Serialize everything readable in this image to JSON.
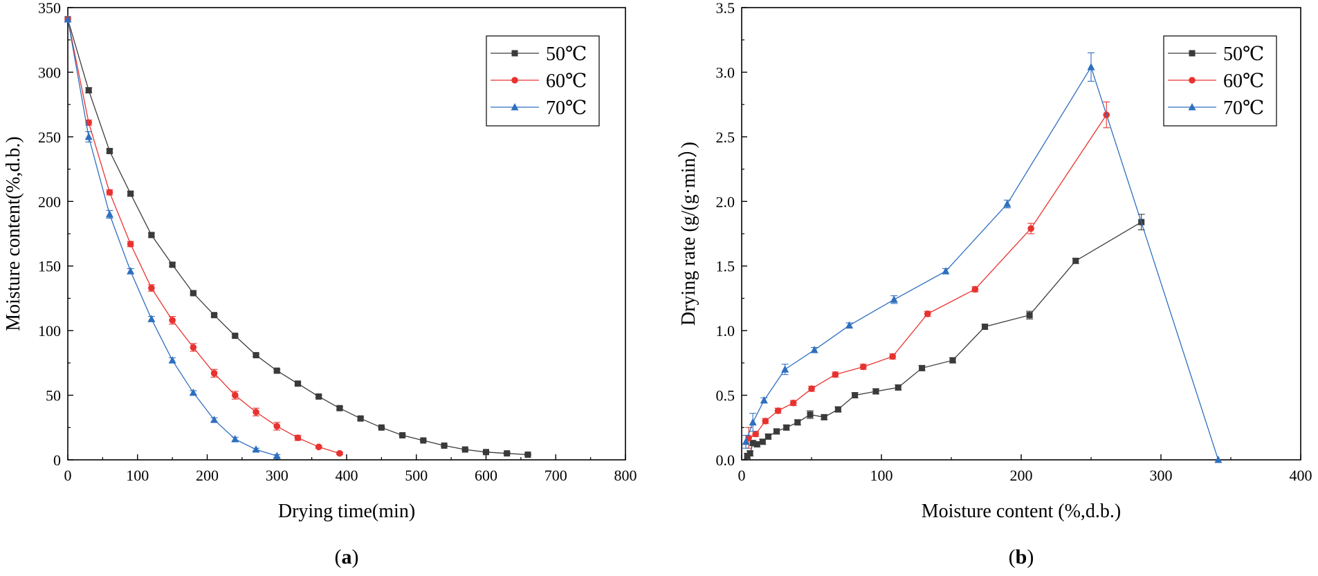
{
  "chart_data": [
    {
      "type": "line",
      "panel_label": "a",
      "xlabel": "Drying time(min)",
      "ylabel": "Moisture content(%,d.b.)",
      "xlim": [
        0,
        800
      ],
      "ylim": [
        0,
        350
      ],
      "xticks": [
        0,
        100,
        200,
        300,
        400,
        500,
        600,
        700,
        800
      ],
      "yticks": [
        0,
        50,
        100,
        150,
        200,
        250,
        300,
        350
      ],
      "grid": false,
      "legend_position": "top-right",
      "series": [
        {
          "name": "50℃",
          "color": "#3a3a3a",
          "marker": "square",
          "x": [
            0,
            30,
            60,
            90,
            120,
            150,
            180,
            210,
            240,
            270,
            300,
            330,
            360,
            390,
            420,
            450,
            480,
            510,
            540,
            570,
            600,
            630,
            660
          ],
          "y": [
            341,
            286,
            239,
            206,
            174,
            151,
            129,
            112,
            96,
            81,
            69,
            59,
            49,
            40,
            32,
            25,
            19,
            15,
            11,
            8,
            6,
            5,
            4
          ],
          "err": [
            0,
            2,
            1.5,
            1.5,
            1.5,
            1.5,
            1,
            1,
            1,
            1,
            1,
            1,
            1,
            1,
            1,
            0.5,
            0.5,
            0.5,
            0.5,
            0.5,
            0.5,
            0.5,
            0.5
          ]
        },
        {
          "name": "60℃",
          "color": "#e8322f",
          "marker": "circle",
          "x": [
            0,
            30,
            60,
            90,
            120,
            150,
            180,
            210,
            240,
            270,
            300,
            330,
            360,
            390
          ],
          "y": [
            341,
            261,
            207,
            167,
            133,
            108,
            87,
            67,
            50,
            37,
            26,
            17,
            10,
            5
          ],
          "err": [
            0,
            2,
            2,
            2,
            2.5,
            3,
            3,
            3,
            3,
            3,
            3,
            2,
            1,
            1
          ]
        },
        {
          "name": "70℃",
          "color": "#2e6fbf",
          "marker": "triangle",
          "x": [
            0,
            30,
            60,
            90,
            120,
            150,
            180,
            210,
            240,
            270,
            300
          ],
          "y": [
            341,
            250,
            190,
            146,
            109,
            77,
            52,
            31,
            16,
            8,
            3
          ],
          "err": [
            0,
            4,
            3,
            2,
            2,
            2,
            1.5,
            1.5,
            1.5,
            1,
            1
          ]
        }
      ]
    },
    {
      "type": "line",
      "panel_label": "b",
      "xlabel": "Moisture content (%,d.b.)",
      "ylabel": "Drying rate (g/(g·min）)",
      "xlim": [
        0,
        400
      ],
      "ylim": [
        0,
        3.5
      ],
      "xticks": [
        0,
        100,
        200,
        300,
        400
      ],
      "yticks": [
        0.0,
        0.5,
        1.0,
        1.5,
        2.0,
        2.5,
        3.0,
        3.5
      ],
      "grid": false,
      "legend_position": "top-right",
      "series": [
        {
          "name": "50℃",
          "color": "#3a3a3a",
          "marker": "square",
          "x": [
            4,
            6,
            8,
            11,
            15,
            19,
            25,
            32,
            40,
            49,
            59,
            69,
            81,
            96,
            112,
            129,
            151,
            174,
            206,
            239,
            286
          ],
          "y": [
            0.03,
            0.05,
            0.13,
            0.12,
            0.14,
            0.18,
            0.22,
            0.25,
            0.29,
            0.35,
            0.33,
            0.39,
            0.5,
            0.53,
            0.56,
            0.71,
            0.77,
            1.03,
            1.12,
            1.54,
            1.84
          ],
          "err": [
            0.02,
            0.02,
            0.02,
            0.02,
            0.02,
            0.02,
            0.02,
            0.02,
            0.02,
            0.03,
            0.02,
            0.02,
            0.02,
            0.02,
            0.02,
            0.02,
            0.02,
            0.02,
            0.03,
            0.02,
            0.06
          ]
        },
        {
          "name": "60℃",
          "color": "#e8322f",
          "marker": "circle",
          "x": [
            5,
            10,
            17,
            26,
            37,
            50,
            67,
            87,
            108,
            133,
            167,
            207,
            261
          ],
          "y": [
            0.17,
            0.2,
            0.3,
            0.38,
            0.44,
            0.55,
            0.66,
            0.72,
            0.8,
            1.13,
            1.32,
            1.79,
            2.67
          ],
          "err": [
            0.08,
            0.02,
            0.02,
            0.02,
            0.02,
            0.02,
            0.02,
            0.02,
            0.02,
            0.02,
            0.02,
            0.04,
            0.1
          ]
        },
        {
          "name": "70℃",
          "color": "#2e6fbf",
          "marker": "triangle",
          "x": [
            3,
            8,
            16,
            31,
            52,
            77,
            109,
            146,
            190,
            250,
            341
          ],
          "y": [
            0.14,
            0.29,
            0.46,
            0.7,
            0.85,
            1.04,
            1.24,
            1.46,
            1.98,
            3.04,
            0.0
          ],
          "err": [
            0.05,
            0.07,
            0.02,
            0.04,
            0.02,
            0.02,
            0.03,
            0.02,
            0.03,
            0.11,
            0.0
          ]
        }
      ]
    }
  ]
}
